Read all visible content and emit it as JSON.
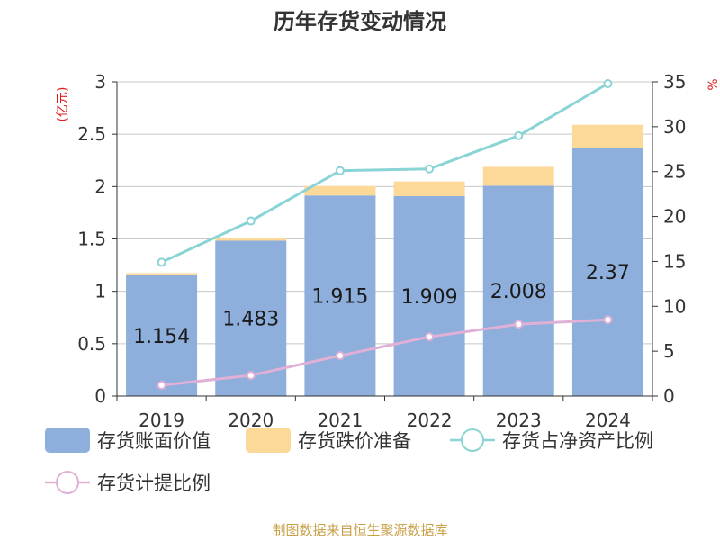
{
  "title": "历年存货变动情况",
  "source": "制图数据来自恒生聚源数据库",
  "chart_data": {
    "type": "bar",
    "categories": [
      "2019",
      "2020",
      "2021",
      "2022",
      "2023",
      "2024"
    ],
    "y_left": {
      "unit": "(亿元)",
      "range": [
        0,
        3
      ],
      "ticks": [
        "0",
        "0.5",
        "1",
        "1.5",
        "2",
        "2.5",
        "3"
      ]
    },
    "y_right": {
      "unit": "%",
      "range": [
        0,
        35
      ],
      "ticks": [
        "0",
        "5",
        "10",
        "15",
        "20",
        "25",
        "30",
        "35"
      ]
    },
    "series": [
      {
        "name": "存货账面价值",
        "kind": "bar",
        "axis": "left",
        "color": "#8eaedb",
        "values": [
          1.154,
          1.483,
          1.915,
          1.909,
          2.008,
          2.37
        ],
        "labels": [
          "1.154",
          "1.483",
          "1.915",
          "1.909",
          "2.008",
          "2.37"
        ]
      },
      {
        "name": "存货跌价准备",
        "kind": "bar",
        "axis": "left",
        "stacked": true,
        "color": "#fdd999",
        "values": [
          0.02,
          0.03,
          0.09,
          0.14,
          0.18,
          0.22
        ]
      },
      {
        "name": "存货占净资产比例",
        "kind": "line",
        "axis": "right",
        "color": "#8ad4d6",
        "values": [
          14.9,
          19.5,
          25.1,
          25.3,
          29.0,
          34.8
        ]
      },
      {
        "name": "存货计提比例",
        "kind": "line",
        "axis": "right",
        "color": "#e0b0d6",
        "values": [
          1.2,
          2.3,
          4.5,
          6.6,
          8.0,
          8.5
        ]
      }
    ],
    "grid": true,
    "legend_position": "bottom"
  }
}
